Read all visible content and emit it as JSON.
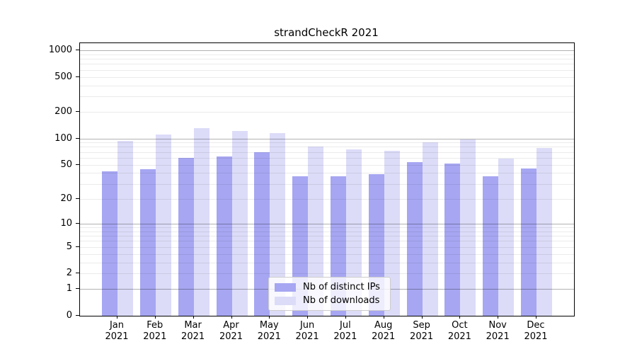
{
  "title": "strandCheckR 2021",
  "chart_data": {
    "type": "bar",
    "title": "strandCheckR 2021",
    "categories": [
      "Jan",
      "Feb",
      "Mar",
      "Apr",
      "May",
      "Jun",
      "Jul",
      "Aug",
      "Sep",
      "Oct",
      "Nov",
      "Dec"
    ],
    "category_year": "2021",
    "series": [
      {
        "name": "Nb of distinct IPs",
        "color": "#a6a6f2",
        "values": [
          42,
          44,
          60,
          62,
          69,
          37,
          37,
          39,
          54,
          52,
          37,
          45
        ]
      },
      {
        "name": "Nb of downloads",
        "color": "#dcdcf8",
        "values": [
          94,
          110,
          131,
          122,
          115,
          81,
          75,
          72,
          90,
          98,
          59,
          78
        ]
      }
    ],
    "y_axis": {
      "scale": "log10(value+1)",
      "tick_values": [
        1000,
        500,
        200,
        100,
        50,
        20,
        10,
        5,
        2,
        1,
        0
      ],
      "major_grid_values": [
        1,
        10,
        100,
        1000
      ],
      "minor_grid_values": [
        2,
        3,
        4,
        5,
        6,
        7,
        8,
        9,
        20,
        30,
        40,
        50,
        60,
        70,
        80,
        90,
        200,
        300,
        400,
        500,
        600,
        700,
        800,
        900
      ],
      "ylim": [
        0,
        1200
      ]
    },
    "xlabel": "",
    "ylabel": "",
    "grid": true,
    "legend_position": "lower center"
  },
  "colors": {
    "background": "#ffffff",
    "bar_distinct_ips": "#a6a6f2",
    "bar_downloads": "#dcdcf8",
    "major_grid": "rgba(0,0,0,0.30)",
    "minor_grid": "rgba(0,0,0,0.08)",
    "axis": "#000000"
  }
}
